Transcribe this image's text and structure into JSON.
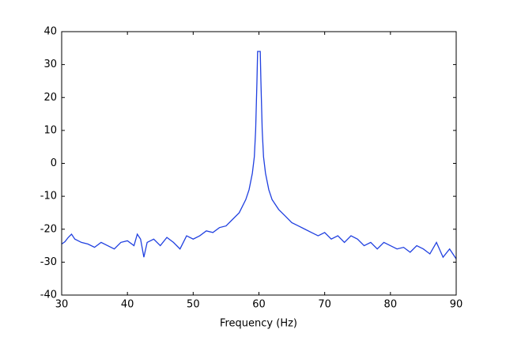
{
  "chart_data": {
    "type": "line",
    "xlabel": "Frequency (Hz)",
    "x": [
      30,
      30.5,
      31,
      31.5,
      32,
      33,
      34,
      35,
      36,
      37,
      38,
      39,
      40,
      41,
      41.5,
      42,
      42.5,
      43,
      44,
      45,
      46,
      47,
      48,
      49,
      50,
      51,
      52,
      53,
      54,
      55,
      56,
      57,
      58,
      58.5,
      59,
      59.3,
      59.5,
      59.7,
      59.8,
      60.2,
      60.3,
      60.5,
      60.7,
      61,
      61.5,
      62,
      63,
      64,
      65,
      66,
      67,
      68,
      69,
      70,
      71,
      72,
      73,
      74,
      75,
      76,
      77,
      78,
      79,
      80,
      81,
      82,
      83,
      84,
      85,
      86,
      87,
      88,
      89,
      89.5,
      90
    ],
    "series": [
      {
        "color": "#2040e0",
        "values": [
          -24.5,
          -23.8,
          -22.5,
          -21.5,
          -23,
          -24,
          -24.5,
          -25.5,
          -24,
          -25,
          -26,
          -24,
          -23.5,
          -25,
          -21.5,
          -23,
          -28.5,
          -24,
          -23,
          -25,
          -22.5,
          -24,
          -26,
          -22,
          -23,
          -22,
          -20.5,
          -21,
          -19.5,
          -19,
          -17,
          -15,
          -11,
          -8,
          -3,
          2,
          10,
          25,
          34,
          34,
          25,
          10,
          2,
          -3,
          -8,
          -11,
          -14,
          -16,
          -18,
          -19,
          -20,
          -21,
          -22,
          -21,
          -23,
          -22,
          -24,
          -22,
          -23,
          -25,
          -24,
          -26,
          -24,
          -25,
          -26,
          -25.5,
          -27,
          -25,
          -26,
          -27.5,
          -24,
          -28.5,
          -26,
          -27.5,
          -29
        ]
      }
    ],
    "xlim": [
      30,
      90
    ],
    "ylim": [
      -40,
      40
    ],
    "xticks": [
      30,
      40,
      50,
      60,
      70,
      80,
      90
    ],
    "yticks": [
      -40,
      -30,
      -20,
      -10,
      0,
      10,
      20,
      30,
      40
    ]
  }
}
